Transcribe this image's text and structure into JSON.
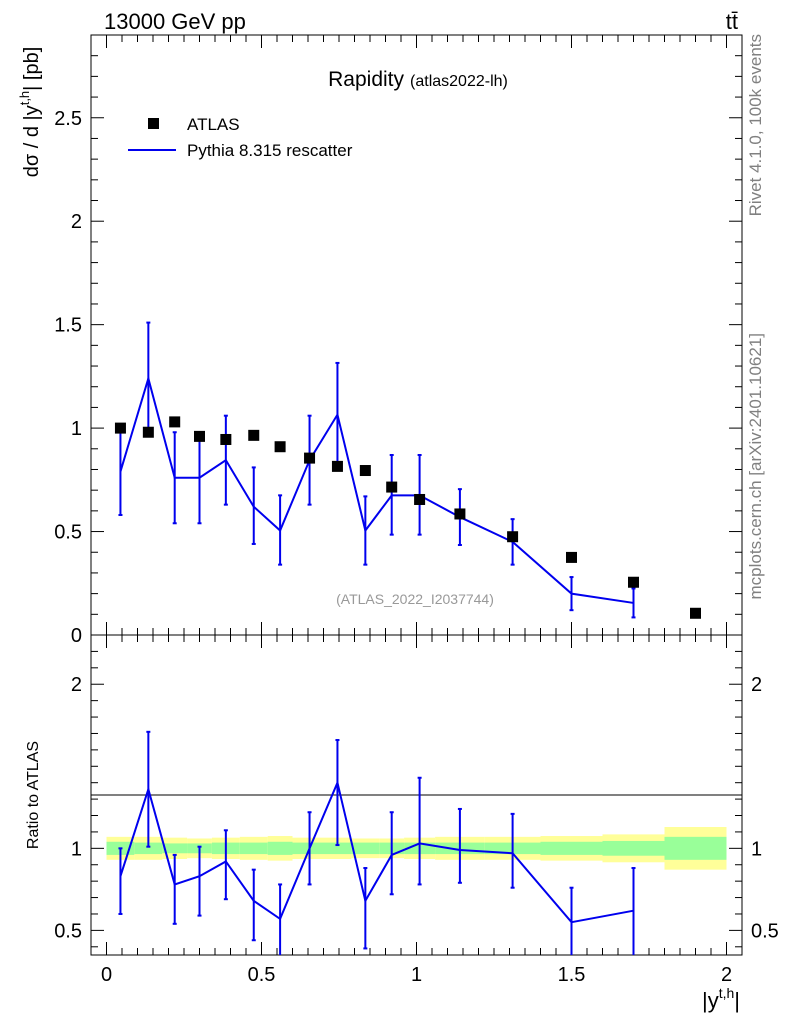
{
  "header": {
    "left_label": "13000 GeV pp",
    "right_label": "tt̄"
  },
  "side_labels": {
    "rivet": "Rivet 4.1.0,  100k events",
    "mcplots": "mcplots.cern.ch [arXiv:2401.10621]"
  },
  "colors": {
    "mc_line": "#0000ee",
    "data_marker": "#000000",
    "band_inner": "#99ff99",
    "band_outer": "#ffff99",
    "watermark": "#999999"
  },
  "chart_data": [
    {
      "type": "scatter",
      "panel": "main",
      "title": "Rapidity",
      "subtitle": "(atlas2022-lh)",
      "watermark": "(ATLAS_2022_I2037744)",
      "ylabel": "dσ / d |y^{t,h}| [pb]",
      "xlabel": "|y^{t,h}|",
      "xlim": [
        -0.05,
        2.05
      ],
      "ylim": [
        0,
        2.9
      ],
      "yticks": [
        "0",
        "0.5",
        "1",
        "1.5",
        "2",
        "2.5"
      ],
      "ytick_values": [
        0,
        0.5,
        1,
        1.5,
        2,
        2.5
      ],
      "legend": {
        "placement": "top-left",
        "entries": [
          "ATLAS",
          "Pythia 8.315 rescatter"
        ]
      },
      "series": [
        {
          "name": "ATLAS",
          "style": "markers",
          "x": [
            0.045,
            0.135,
            0.22,
            0.3,
            0.385,
            0.475,
            0.56,
            0.655,
            0.745,
            0.835,
            0.92,
            1.01,
            1.14,
            1.31,
            1.5,
            1.7,
            1.9
          ],
          "y": [
            1.0,
            0.98,
            1.03,
            0.96,
            0.945,
            0.965,
            0.91,
            0.855,
            0.815,
            0.795,
            0.715,
            0.655,
            0.585,
            0.475,
            0.375,
            0.255,
            0.105
          ]
        },
        {
          "name": "Pythia 8.315 rescatter",
          "style": "line",
          "x": [
            0.045,
            0.135,
            0.22,
            0.3,
            0.385,
            0.475,
            0.56,
            0.655,
            0.745,
            0.835,
            0.92,
            1.01,
            1.14,
            1.31,
            1.5,
            1.7
          ],
          "y": [
            0.79,
            1.24,
            0.76,
            0.76,
            0.845,
            0.62,
            0.505,
            0.845,
            1.065,
            0.505,
            0.675,
            0.675,
            0.57,
            0.45,
            0.2,
            0.155
          ],
          "yerr_low": [
            0.21,
            0.27,
            0.22,
            0.22,
            0.215,
            0.18,
            0.165,
            0.215,
            0.25,
            0.165,
            0.19,
            0.19,
            0.135,
            0.11,
            0.08,
            0.07
          ],
          "yerr_high": [
            0.21,
            0.27,
            0.22,
            0.22,
            0.215,
            0.19,
            0.17,
            0.215,
            0.25,
            0.165,
            0.195,
            0.195,
            0.135,
            0.11,
            0.08,
            0.07
          ]
        }
      ]
    },
    {
      "type": "line",
      "panel": "ratio",
      "ylabel": "Ratio to ATLAS",
      "xlabel": "|y^{t,h}|",
      "xlim": [
        -0.05,
        2.05
      ],
      "ylim": [
        0.35,
        2.3
      ],
      "xticks": [
        "0",
        "0.5",
        "1",
        "1.5",
        "2"
      ],
      "xtick_values": [
        0,
        0.5,
        1,
        1.5,
        2
      ],
      "yticks": [
        "0.5",
        "1",
        "2"
      ],
      "ytick_values": [
        0.5,
        1,
        2
      ],
      "bands": {
        "edges": [
          0,
          0.09,
          0.18,
          0.26,
          0.34,
          0.43,
          0.52,
          0.6,
          0.7,
          0.79,
          0.88,
          0.96,
          1.06,
          1.22,
          1.4,
          1.6,
          1.8,
          2.0
        ],
        "inner": [
          0.04,
          0.035,
          0.03,
          0.03,
          0.035,
          0.035,
          0.04,
          0.035,
          0.035,
          0.035,
          0.035,
          0.035,
          0.035,
          0.035,
          0.04,
          0.045,
          0.07
        ],
        "outer": [
          0.07,
          0.07,
          0.065,
          0.06,
          0.065,
          0.07,
          0.075,
          0.065,
          0.065,
          0.06,
          0.06,
          0.065,
          0.07,
          0.07,
          0.075,
          0.085,
          0.13
        ]
      },
      "series": [
        {
          "name": "Pythia 8.315 rescatter / ATLAS",
          "x": [
            0.045,
            0.135,
            0.22,
            0.3,
            0.385,
            0.475,
            0.56,
            0.655,
            0.745,
            0.835,
            0.92,
            1.01,
            1.14,
            1.31,
            1.5,
            1.7
          ],
          "y": [
            0.83,
            1.36,
            0.78,
            0.83,
            0.92,
            0.68,
            0.57,
            1.0,
            1.4,
            0.68,
            0.96,
            1.03,
            0.99,
            0.97,
            0.55,
            0.62
          ],
          "yerr_low": [
            0.23,
            0.35,
            0.24,
            0.24,
            0.23,
            0.24,
            0.25,
            0.22,
            0.38,
            0.29,
            0.24,
            0.25,
            0.2,
            0.21,
            0.21,
            0.27
          ],
          "yerr_high": [
            0.17,
            0.35,
            0.18,
            0.18,
            0.19,
            0.19,
            0.21,
            0.22,
            0.26,
            0.2,
            0.26,
            0.4,
            0.25,
            0.24,
            0.21,
            0.26
          ]
        }
      ]
    }
  ]
}
